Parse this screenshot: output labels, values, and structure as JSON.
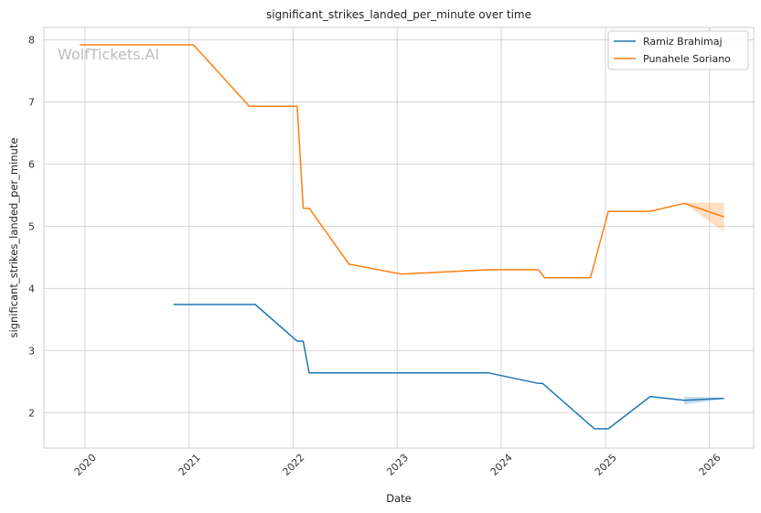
{
  "chart_data": {
    "type": "line",
    "title": "significant_strikes_landed_per_minute over time",
    "xlabel": "Date",
    "ylabel": "significant_strikes_landed_per_minute",
    "watermark": "WolfTickets.AI",
    "x_ticks": [
      "2020",
      "2021",
      "2022",
      "2023",
      "2024",
      "2025",
      "2026"
    ],
    "y_ticks": [
      2,
      3,
      4,
      5,
      6,
      7,
      8
    ],
    "xlim": [
      "2019-08-10",
      "2026-06-05"
    ],
    "ylim": [
      1.43,
      8.2
    ],
    "grid": true,
    "legend_position": "top-right",
    "series": [
      {
        "name": "Ramiz Brahimaj",
        "color": "#1f77b4",
        "points": [
          [
            "2020-11-07",
            3.74
          ],
          [
            "2021-08-21",
            3.74
          ],
          [
            "2022-01-15",
            3.15
          ],
          [
            "2022-02-05",
            3.15
          ],
          [
            "2022-02-26",
            2.64
          ],
          [
            "2023-11-18",
            2.64
          ],
          [
            "2024-05-11",
            2.47
          ],
          [
            "2024-05-25",
            2.47
          ],
          [
            "2024-11-23",
            1.74
          ],
          [
            "2025-01-11",
            1.74
          ],
          [
            "2025-06-07",
            2.26
          ],
          [
            "2025-10-04",
            2.2
          ],
          [
            "2026-02-21",
            2.23
          ]
        ],
        "band": [
          [
            "2025-10-04",
            2.13,
            2.26
          ],
          [
            "2026-02-21",
            2.22,
            2.24
          ]
        ]
      },
      {
        "name": "Punahele Soriano",
        "color": "#ff7f0e",
        "points": [
          [
            "2019-12-14",
            7.92
          ],
          [
            "2021-01-16",
            7.92
          ],
          [
            "2021-07-31",
            6.93
          ],
          [
            "2022-01-15",
            6.93
          ],
          [
            "2022-02-05",
            5.29
          ],
          [
            "2022-02-26",
            5.29
          ],
          [
            "2022-07-16",
            4.39
          ],
          [
            "2023-01-14",
            4.23
          ],
          [
            "2023-11-18",
            4.3
          ],
          [
            "2024-05-11",
            4.3
          ],
          [
            "2024-06-01",
            4.17
          ],
          [
            "2024-11-09",
            4.17
          ],
          [
            "2025-01-11",
            5.24
          ],
          [
            "2025-06-07",
            5.24
          ],
          [
            "2025-10-04",
            5.37
          ],
          [
            "2026-02-21",
            5.15
          ]
        ],
        "band": [
          [
            "2025-10-04",
            5.37,
            5.38
          ],
          [
            "2026-02-21",
            4.91,
            5.38
          ]
        ]
      }
    ]
  }
}
